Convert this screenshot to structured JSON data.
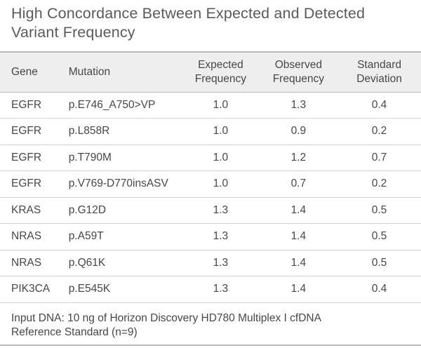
{
  "title": {
    "line1": "High Concordance Between Expected and Detected",
    "line2": "Variant Frequency"
  },
  "table": {
    "headers": {
      "gene": "Gene",
      "mutation": "Mutation",
      "expected_line1": "Expected",
      "expected_line2": "Frequency",
      "observed_line1": "Observed",
      "observed_line2": "Frequency",
      "sd_line1": "Standard",
      "sd_line2": "Deviation"
    },
    "rows": [
      {
        "gene": "EGFR",
        "mutation": "p.E746_A750>VP",
        "expected": "1.0",
        "observed": "1.3",
        "sd": "0.4"
      },
      {
        "gene": "EGFR",
        "mutation": "p.L858R",
        "expected": "1.0",
        "observed": "0.9",
        "sd": "0.2"
      },
      {
        "gene": "EGFR",
        "mutation": "p.T790M",
        "expected": "1.0",
        "observed": "1.2",
        "sd": "0.7"
      },
      {
        "gene": "EGFR",
        "mutation": "p.V769-D770insASV",
        "expected": "1.0",
        "observed": "0.7",
        "sd": "0.2"
      },
      {
        "gene": "KRAS",
        "mutation": "p.G12D",
        "expected": "1.3",
        "observed": "1.4",
        "sd": "0.5"
      },
      {
        "gene": "NRAS",
        "mutation": "p.A59T",
        "expected": "1.3",
        "observed": "1.4",
        "sd": "0.5"
      },
      {
        "gene": "NRAS",
        "mutation": "p.Q61K",
        "expected": "1.3",
        "observed": "1.4",
        "sd": "0.5"
      },
      {
        "gene": "PIK3CA",
        "mutation": "p.E545K",
        "expected": "1.3",
        "observed": "1.4",
        "sd": "0.4"
      }
    ]
  },
  "footnote": {
    "line1": "Input DNA: 10 ng of Horizon Discovery HD780 Multiplex I cfDNA",
    "line2": "Reference Standard (n=9)"
  }
}
